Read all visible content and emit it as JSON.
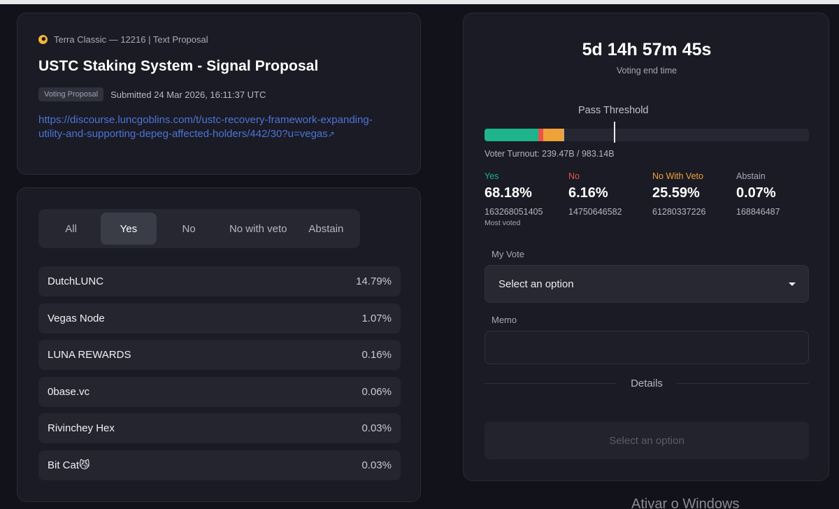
{
  "proposal": {
    "chain_line": "Terra Classic — 12216 | Text Proposal",
    "title": "USTC Staking System - Signal Proposal",
    "type_badge": "Voting Proposal",
    "submitted": "Submitted 24 Mar 2026, 16:11:37 UTC",
    "link": "https://discourse.luncgoblins.com/t/ustc-recovery-framework-expanding-utility-and-supporting-depeg-affected-holders/442/30?u=vegas",
    "link_arrow": "↗"
  },
  "tabs": [
    "All",
    "Yes",
    "No",
    "No with veto",
    "Abstain"
  ],
  "active_tab": "Yes",
  "voters": [
    {
      "name": "DutchLUNC",
      "pct": "14.79%"
    },
    {
      "name": "Vegas Node",
      "pct": "1.07%"
    },
    {
      "name": "LUNA REWARDS",
      "pct": "0.16%"
    },
    {
      "name": "0base.vc",
      "pct": "0.06%"
    },
    {
      "name": "Rivinchey Hex",
      "pct": "0.03%"
    },
    {
      "name": "Bit Cat😼",
      "pct": "0.03%"
    }
  ],
  "voting": {
    "countdown": "5d 14h 57m 45s",
    "countdown_label": "Voting end time",
    "threshold_label": "Pass Threshold",
    "threshold_fraction": 0.4,
    "turnout": "Voter Turnout: 239.47B / 983.14B",
    "turnout_fraction": 0.2436
  },
  "results": [
    {
      "label": "Yes",
      "pct": "68.18%",
      "count": "163268051405",
      "note": "Most voted",
      "share": 68.18,
      "color": "#1eb48c"
    },
    {
      "label": "No",
      "pct": "6.16%",
      "count": "14750646582",
      "note": "",
      "share": 6.16,
      "color": "#e8534a"
    },
    {
      "label": "No With Veto",
      "pct": "25.59%",
      "count": "61280337226",
      "note": "",
      "share": 25.59,
      "color": "#f0a23a"
    },
    {
      "label": "Abstain",
      "pct": "0.07%",
      "count": "168846487",
      "note": "",
      "share": 0.07,
      "color": "#a6a8b5"
    }
  ],
  "form": {
    "my_vote_label": "My Vote",
    "select_placeholder": "Select an option",
    "memo_label": "Memo",
    "details_label": "Details",
    "submit_label": "Select an option"
  },
  "watermark": "Ativar o Windows",
  "colors": {
    "background": "#11121a",
    "card": "#1a1b24",
    "link": "#4e73d9",
    "yes": "#1eb48c",
    "no": "#e8534a",
    "veto": "#f0a23a"
  }
}
